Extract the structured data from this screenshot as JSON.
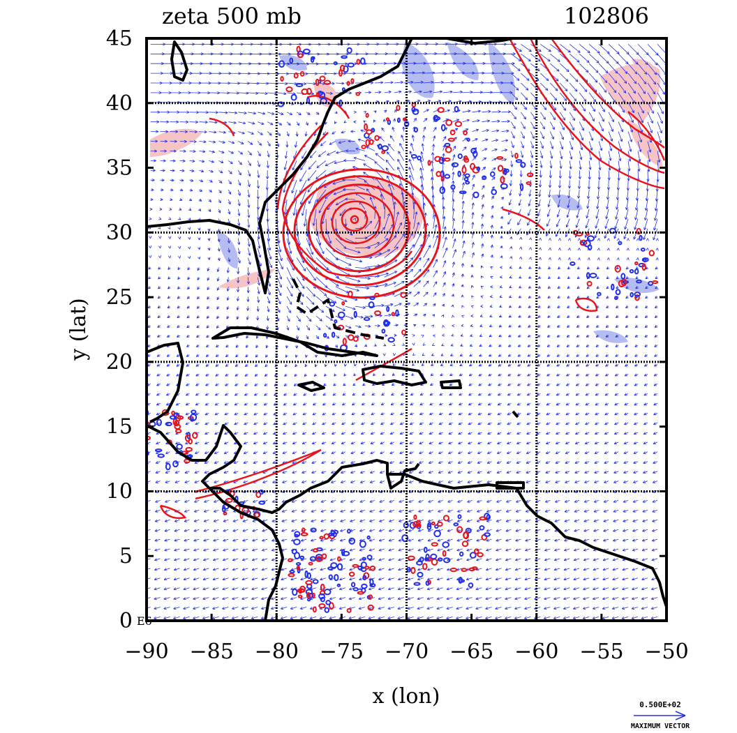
{
  "chart_data": {
    "type": "vector-contour-map",
    "title_left": "zeta 500 mb",
    "title_right": "102806",
    "xlabel": "x (lon)",
    "ylabel": "y (lat)",
    "xlim": [
      -90,
      -50
    ],
    "ylim": [
      0,
      45
    ],
    "x_ticks": [
      -90,
      -85,
      -80,
      -75,
      -70,
      -65,
      -60,
      -55,
      -50
    ],
    "y_ticks": [
      0,
      5,
      10,
      15,
      20,
      25,
      30,
      35,
      40,
      45
    ],
    "x_tick_labels": [
      "−90",
      "−85",
      "−80",
      "−75",
      "−70",
      "−65",
      "−60",
      "−55",
      "−50"
    ],
    "y_tick_labels": [
      "0",
      "5",
      "10",
      "15",
      "20",
      "25",
      "30",
      "35",
      "40",
      "45"
    ],
    "corner_label": "E6",
    "grid_lon": [
      -80,
      -70,
      -60
    ],
    "grid_lat": [
      10,
      20,
      30,
      40
    ],
    "max_vector_value": "0.500E+02",
    "max_vector_label": "MAXIMUM VECTOR",
    "vortex_center": {
      "lon": -74,
      "lat": 31
    },
    "positive_vorticity_color": "#e8141c",
    "negative_vorticity_color": "#2430e6",
    "positive_fill": "#f6c4c4",
    "negative_fill": "#b4bcf0",
    "coast_color": "#000000"
  }
}
